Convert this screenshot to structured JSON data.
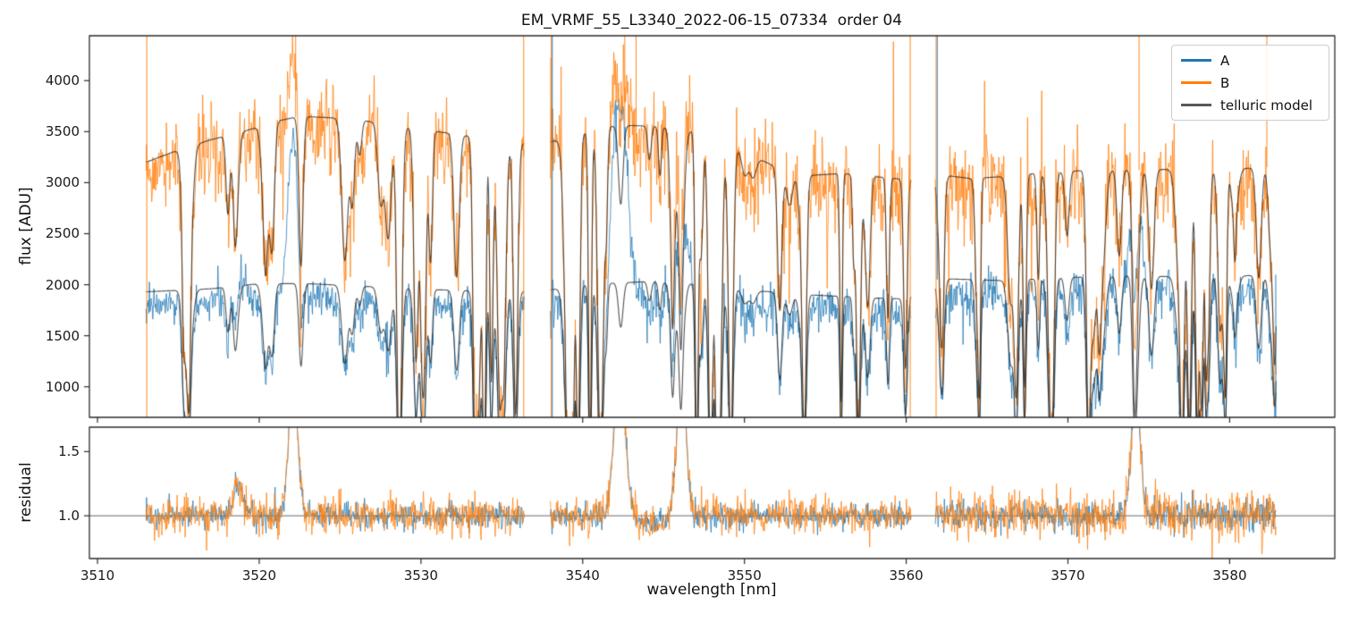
{
  "title": "EM_VRMF_55_L3340_2022-06-15_07334  order 04",
  "legend": {
    "items": [
      {
        "label": "A",
        "color": "#1f77b4"
      },
      {
        "label": "B",
        "color": "#ff7f0e"
      },
      {
        "label": "telluric model",
        "color": "#595959"
      }
    ]
  },
  "chart_data": {
    "type": "line",
    "xlabel": "wavelength [nm]",
    "xlim": [
      3509.5,
      3586.5
    ],
    "xticks": [
      {
        "v": 3510,
        "label": "3510"
      },
      {
        "v": 3520,
        "label": "3520"
      },
      {
        "v": 3530,
        "label": "3530"
      },
      {
        "v": 3540,
        "label": "3540"
      },
      {
        "v": 3550,
        "label": "3550"
      },
      {
        "v": 3560,
        "label": "3560"
      },
      {
        "v": 3570,
        "label": "3570"
      },
      {
        "v": 3580,
        "label": "3580"
      }
    ],
    "top_panel": {
      "ylabel": "flux [ADU]",
      "ylim": [
        700,
        4440
      ],
      "yticks": [
        {
          "v": 1000,
          "label": "1000"
        },
        {
          "v": 1500,
          "label": "1500"
        },
        {
          "v": 2000,
          "label": "2000"
        },
        {
          "v": 2500,
          "label": "2500"
        },
        {
          "v": 3000,
          "label": "3000"
        },
        {
          "v": 3500,
          "label": "3500"
        },
        {
          "v": 4000,
          "label": "4000"
        }
      ]
    },
    "bottom_panel": {
      "ylabel": "residual",
      "ylim": [
        0.667,
        1.69
      ],
      "yticks": [
        {
          "v": 1.0,
          "label": "1.0"
        },
        {
          "v": 1.5,
          "label": "1.5"
        }
      ],
      "reference_line": 1.0
    },
    "segments": [
      {
        "start": 3513.0,
        "end": 3536.4
      },
      {
        "start": 3538.0,
        "end": 3560.3
      },
      {
        "start": 3561.8,
        "end": 3582.9
      }
    ],
    "series": {
      "A": {
        "color": "#1f77b4",
        "trace_scale": 0.93,
        "noise_sigma": [
          80,
          105,
          105
        ]
      },
      "B": {
        "color": "#ff7f0e",
        "trace_scale": 0.97,
        "noise_sigma": [
          190,
          220,
          210
        ]
      },
      "telluric_model": {
        "color": "#595959"
      }
    },
    "model_envelope_A": [
      [
        3513,
        1930
      ],
      [
        3517,
        1960
      ],
      [
        3520,
        2010
      ],
      [
        3523,
        2010
      ],
      [
        3527,
        1980
      ],
      [
        3531,
        1950
      ],
      [
        3536,
        1930
      ],
      [
        3538,
        1950
      ],
      [
        3541,
        2010
      ],
      [
        3544,
        2030
      ],
      [
        3547,
        2010
      ],
      [
        3550,
        1950
      ],
      [
        3554,
        1900
      ],
      [
        3558,
        1870
      ],
      [
        3560,
        1860
      ],
      [
        3562,
        2060
      ],
      [
        3566,
        2040
      ],
      [
        3570,
        2070
      ],
      [
        3574,
        2090
      ],
      [
        3578,
        2070
      ],
      [
        3583,
        2100
      ]
    ],
    "model_envelope_B": [
      [
        3513,
        3200
      ],
      [
        3515,
        3320
      ],
      [
        3517,
        3420
      ],
      [
        3519,
        3500
      ],
      [
        3521,
        3600
      ],
      [
        3522.5,
        3650
      ],
      [
        3524,
        3640
      ],
      [
        3526,
        3620
      ],
      [
        3528,
        3570
      ],
      [
        3530,
        3520
      ],
      [
        3532,
        3480
      ],
      [
        3534,
        3430
      ],
      [
        3536,
        3380
      ],
      [
        3538,
        3400
      ],
      [
        3540,
        3480
      ],
      [
        3541.5,
        3550
      ],
      [
        3543,
        3560
      ],
      [
        3545,
        3550
      ],
      [
        3546.5,
        3520
      ],
      [
        3548,
        3420
      ],
      [
        3550,
        3300
      ],
      [
        3552,
        3150
      ],
      [
        3554,
        3070
      ],
      [
        3556,
        3090
      ],
      [
        3558,
        3060
      ],
      [
        3560,
        3030
      ],
      [
        3562,
        3080
      ],
      [
        3564,
        3040
      ],
      [
        3566,
        3060
      ],
      [
        3568,
        3090
      ],
      [
        3570,
        3110
      ],
      [
        3572,
        3130
      ],
      [
        3574,
        3120
      ],
      [
        3576,
        3130
      ],
      [
        3578,
        3100
      ],
      [
        3580,
        3130
      ],
      [
        3583,
        3160
      ]
    ],
    "emission_peaks": [
      {
        "x": 3518.7,
        "amp_A": 430,
        "amp_B": 250,
        "width": 0.28
      },
      {
        "x": 3522.1,
        "amp_A": 1560,
        "amp_B": 700,
        "width": 0.33
      },
      {
        "x": 3542.3,
        "amp_A": 2250,
        "amp_B": 800,
        "width": 0.42
      },
      {
        "x": 3546.1,
        "amp_A": 1150,
        "amp_B": 600,
        "width": 0.38
      },
      {
        "x": 3574.2,
        "amp_A": 1450,
        "amp_B": 600,
        "width": 0.3
      }
    ],
    "residual_peaks": [
      {
        "x": 3518.7,
        "amp": 0.22,
        "width": 0.3
      },
      {
        "x": 3522.1,
        "amp": 0.95,
        "width": 0.3
      },
      {
        "x": 3542.3,
        "amp": 1.1,
        "width": 0.35
      },
      {
        "x": 3546.1,
        "amp": 1.0,
        "width": 0.3
      },
      {
        "x": 3544.2,
        "amp": -0.07,
        "width": 0.8
      },
      {
        "x": 3574.2,
        "amp": 0.95,
        "width": 0.28
      }
    ],
    "residual_noise": {
      "A": 0.045,
      "B": 0.068,
      "segment_scale": [
        1.0,
        1.0,
        1.35
      ]
    },
    "telluric_dip_clusters": [
      {
        "range": [
          3513.5,
          3536.0
        ],
        "count": 26,
        "depth": [
          0.05,
          0.45
        ],
        "width": [
          0.06,
          0.2
        ]
      },
      {
        "range": [
          3525.0,
          3536.3
        ],
        "count": 10,
        "depth": [
          0.5,
          1.0
        ],
        "width": [
          0.07,
          0.16
        ]
      },
      {
        "range": [
          3538.0,
          3541.5
        ],
        "count": 7,
        "depth": [
          0.6,
          1.0
        ],
        "width": [
          0.08,
          0.18
        ]
      },
      {
        "range": [
          3538.0,
          3560.0
        ],
        "count": 22,
        "depth": [
          0.05,
          0.45
        ],
        "width": [
          0.06,
          0.2
        ]
      },
      {
        "range": [
          3546.5,
          3549.5
        ],
        "count": 5,
        "depth": [
          0.5,
          0.95
        ],
        "width": [
          0.08,
          0.16
        ]
      },
      {
        "range": [
          3552.0,
          3560.0
        ],
        "count": 6,
        "depth": [
          0.4,
          0.9
        ],
        "width": [
          0.07,
          0.14
        ]
      },
      {
        "range": [
          3562.0,
          3583.0
        ],
        "count": 26,
        "depth": [
          0.05,
          0.5
        ],
        "width": [
          0.06,
          0.2
        ]
      },
      {
        "range": [
          3563.0,
          3583.0
        ],
        "count": 12,
        "depth": [
          0.5,
          0.95
        ],
        "width": [
          0.07,
          0.15
        ]
      }
    ],
    "edge_spikes": [
      {
        "x": 3513.05,
        "series": "B",
        "dir": "both"
      },
      {
        "x": 3522.25,
        "series": "B",
        "dir": "up"
      },
      {
        "x": 3536.35,
        "series": "B",
        "dir": "both"
      },
      {
        "x": 3538.05,
        "series": "B",
        "dir": "both"
      },
      {
        "x": 3538.12,
        "series": "A",
        "dir": "both"
      },
      {
        "x": 3542.6,
        "series": "B",
        "dir": "up"
      },
      {
        "x": 3543.3,
        "series": "B",
        "dir": "up"
      },
      {
        "x": 3560.25,
        "series": "B",
        "dir": "both"
      },
      {
        "x": 3561.85,
        "series": "B",
        "dir": "both"
      },
      {
        "x": 3561.92,
        "series": "A",
        "dir": "up"
      },
      {
        "x": 3574.4,
        "series": "B",
        "dir": "up"
      },
      {
        "x": 3582.3,
        "series": "B",
        "dir": "up"
      },
      {
        "x": 3582.85,
        "series": "A",
        "dir": "down"
      }
    ]
  }
}
